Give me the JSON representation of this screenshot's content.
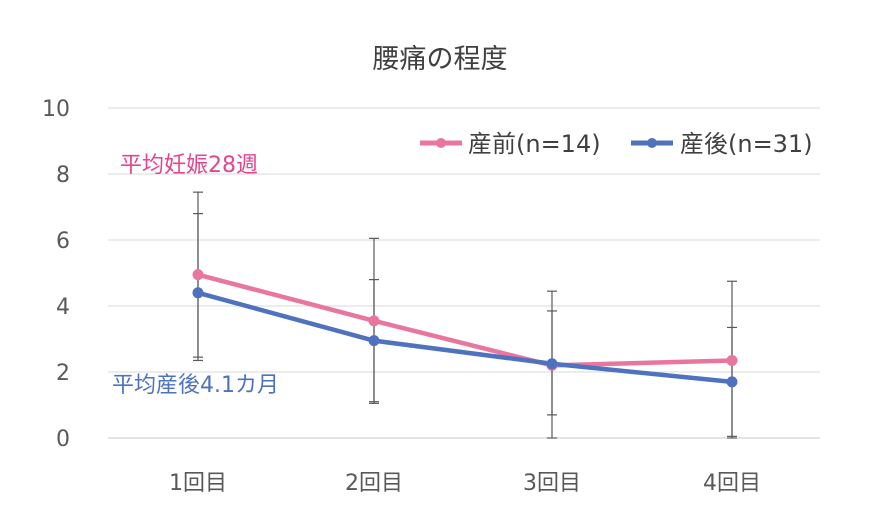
{
  "chart_data": {
    "type": "line",
    "title": "腰痛の程度",
    "categories": [
      "1回目",
      "2回目",
      "3回目",
      "4回目"
    ],
    "xlabel": "",
    "ylabel": "",
    "ylim": [
      0,
      10
    ],
    "yticks": [
      "0",
      "2",
      "4",
      "6",
      "8",
      "10"
    ],
    "grid": true,
    "legend": "top-right",
    "series": [
      {
        "name": "産前(n=14)",
        "color": "#E9769E",
        "values": [
          4.95,
          3.55,
          2.2,
          2.35
        ],
        "err_low": [
          2.45,
          1.05,
          0.0,
          0.0
        ],
        "err_high": [
          7.45,
          6.05,
          4.45,
          4.75
        ]
      },
      {
        "name": "産後(n=31)",
        "color": "#4F72BE",
        "values": [
          4.4,
          2.95,
          2.25,
          1.7
        ],
        "err_low": [
          2.35,
          1.1,
          0.7,
          0.05
        ],
        "err_high": [
          6.8,
          4.8,
          3.85,
          3.35
        ]
      }
    ],
    "annotations": [
      {
        "text": "平均妊娠28週",
        "color": "#E6448F"
      },
      {
        "text": "平均産後4.1カ月",
        "color": "#4F72BE"
      }
    ]
  }
}
